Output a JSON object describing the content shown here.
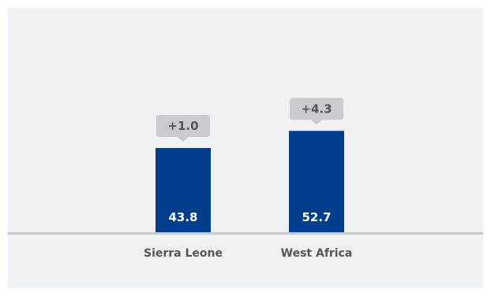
{
  "colors": {
    "panel_background": "#f0f1f3",
    "bar": "#003d8a",
    "baseline": "#c8c9cc",
    "callout": "#cacbce",
    "callout_text": "#555555",
    "category_text": "#555555",
    "value_text": "#ffffff"
  },
  "chart_data": {
    "type": "bar",
    "categories": [
      "Sierra Leone",
      "West Africa"
    ],
    "values": [
      43.8,
      52.7
    ],
    "value_labels": [
      "43.8",
      "52.7"
    ],
    "change_labels": [
      "+1.0",
      "+4.3"
    ],
    "title": "",
    "xlabel": "",
    "ylabel": "",
    "ylim": [
      0,
      60
    ],
    "grid": false,
    "legend": "none"
  }
}
